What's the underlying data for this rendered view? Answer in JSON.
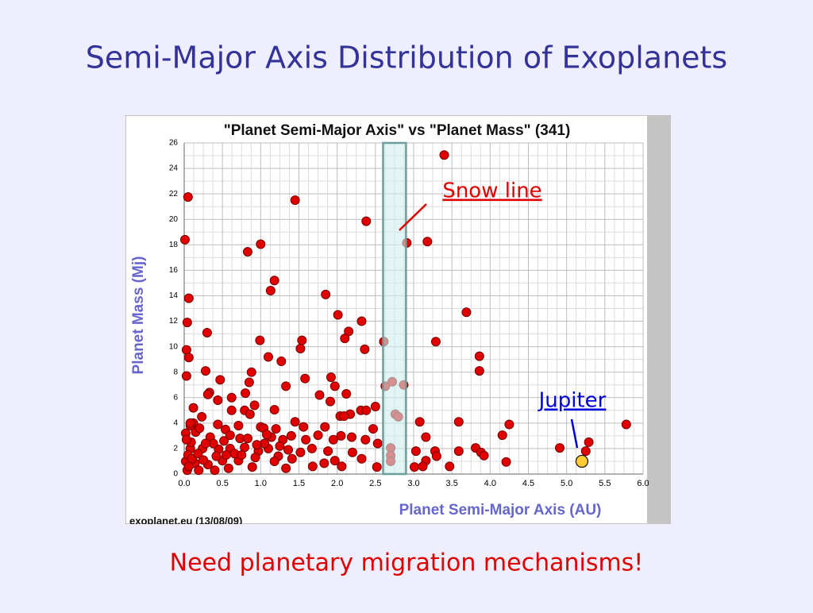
{
  "title": "Semi-Major Axis Distribution of Exoplanets",
  "caption": "Need planetary migration mechanisms!",
  "chart_data": {
    "type": "scatter",
    "title": "\"Planet Semi-Major Axis\"  vs \"Planet Mass\" (341)",
    "x_label": "Planet Semi-Major Axis (AU)",
    "y_label": "Planet Mass (Mj)",
    "source": "exoplanet.eu (13/08/09)",
    "color": "#e00000",
    "xlim": [
      0,
      6
    ],
    "ylim": [
      0,
      26
    ],
    "xticks": [
      {
        "value": 0,
        "label": "0.0"
      },
      {
        "value": 0.5,
        "label": "0.5"
      },
      {
        "value": 1,
        "label": "1.0"
      },
      {
        "value": 1.5,
        "label": "1.5"
      },
      {
        "value": 2,
        "label": "2.0"
      },
      {
        "value": 2.5,
        "label": "2.5"
      },
      {
        "value": 3,
        "label": "3.0"
      },
      {
        "value": 3.5,
        "label": "3.5"
      },
      {
        "value": 4,
        "label": "4.0"
      },
      {
        "value": 4.5,
        "label": "4.5"
      },
      {
        "value": 5,
        "label": "5.0"
      },
      {
        "value": 5.5,
        "label": "5.5"
      },
      {
        "value": 6,
        "label": "6.0"
      }
    ],
    "yticks": [
      0,
      2,
      4,
      6,
      8,
      10,
      12,
      14,
      16,
      18,
      20,
      22,
      24,
      26
    ],
    "grid": true,
    "band_x": [
      2.6,
      2.9
    ],
    "x": [
      3.4,
      0.05,
      1.45,
      2.38,
      0.01,
      1.0,
      0.83,
      2.91,
      3.18,
      1.18,
      1.13,
      0.06,
      1.85,
      3.69,
      2.01,
      2.32,
      0.04,
      2.15,
      0.3,
      2.1,
      0.99,
      1.54,
      2.61,
      3.29,
      2.36,
      1.52,
      0.03,
      1.1,
      3.86,
      0.06,
      1.27,
      3.86,
      0.88,
      0.28,
      0.03,
      1.58,
      0.47,
      1.92,
      2.72,
      2.87,
      2.63,
      0.85,
      1.33,
      1.97,
      0.8,
      0.33,
      1.77,
      0.31,
      2.12,
      0.62,
      0.44,
      0.92,
      1.91,
      2.5,
      0.12,
      0.62,
      0.79,
      2.31,
      2.38,
      2.17,
      1.18,
      2.04,
      2.09,
      2.76,
      2.8,
      0.86,
      0.23,
      1.45,
      3.08,
      3.59,
      4.25,
      5.78,
      0.12,
      0.08,
      0.71,
      1.0,
      1.04,
      2.47,
      1.2,
      1.56,
      1.84,
      0.44,
      0.54,
      4.16,
      0.02,
      0.34,
      0.6,
      0.73,
      0.83,
      1.14,
      1.29,
      1.59,
      1.75,
      1.95,
      2.05,
      2.19,
      2.37,
      3.16,
      2.53,
      5.29,
      3.81,
      4.91,
      2.7,
      3.03,
      3.28,
      3.59,
      3.88,
      3.92,
      5.25,
      2.2,
      1.88,
      1.67,
      1.52,
      1.1,
      0.97,
      0.79,
      0.6,
      0.45,
      0.24,
      0.08,
      2.7,
      3.3,
      2.32,
      3.16,
      4.21,
      2.7,
      1.97,
      1.83,
      1.41,
      1.23,
      0.71,
      0.5,
      0.31,
      0.14,
      3.01,
      3.47,
      3.12,
      2.52,
      2.06,
      1.68,
      1.33,
      0.89,
      0.58,
      0.4,
      0.19,
      0.04,
      0.02,
      0.05,
      0.09,
      0.03,
      0.1,
      0.06,
      0.15,
      0.2,
      0.08,
      0.18,
      0.25,
      0.38,
      0.52,
      0.66,
      0.93,
      1.05,
      1.18,
      1.25,
      1.36,
      1.4,
      1.08,
      0.95,
      0.75,
      0.55,
      0.28,
      0.42
    ],
    "values": [
      25.05,
      21.75,
      21.5,
      19.85,
      18.4,
      18.05,
      17.45,
      18.15,
      18.25,
      15.2,
      14.4,
      13.8,
      14.1,
      12.7,
      12.5,
      12.0,
      11.9,
      11.2,
      11.1,
      10.65,
      10.5,
      10.5,
      10.4,
      10.4,
      9.8,
      9.85,
      9.75,
      9.2,
      9.25,
      9.15,
      8.85,
      8.1,
      8.0,
      8.1,
      7.7,
      7.5,
      7.4,
      7.6,
      7.25,
      7.0,
      6.9,
      7.2,
      6.9,
      6.9,
      6.35,
      6.4,
      6.2,
      6.25,
      6.3,
      6.0,
      5.8,
      5.4,
      5.7,
      5.3,
      5.2,
      5.0,
      5.0,
      5.0,
      5.0,
      4.7,
      5.05,
      4.55,
      4.55,
      4.7,
      4.5,
      4.7,
      4.5,
      4.1,
      4.1,
      4.1,
      3.9,
      3.9,
      4.0,
      3.8,
      3.8,
      3.7,
      3.6,
      3.55,
      3.55,
      3.7,
      3.7,
      3.9,
      3.5,
      3.05,
      3.2,
      2.9,
      3.05,
      2.8,
      2.8,
      2.9,
      2.7,
      2.7,
      3.05,
      2.7,
      3.0,
      2.9,
      2.7,
      2.9,
      2.4,
      2.5,
      2.05,
      2.05,
      2.05,
      1.8,
      1.8,
      1.8,
      1.7,
      1.45,
      1.8,
      1.7,
      1.8,
      2.0,
      1.7,
      2.0,
      1.8,
      2.1,
      2.0,
      1.95,
      2.0,
      2.0,
      1.45,
      1.4,
      1.2,
      1.05,
      0.95,
      1.0,
      1.05,
      0.85,
      1.2,
      1.4,
      1.05,
      1.05,
      0.75,
      0.85,
      0.55,
      0.6,
      0.6,
      0.55,
      0.6,
      0.6,
      0.45,
      0.55,
      0.45,
      0.3,
      0.3,
      0.3,
      1.0,
      1.5,
      2.5,
      2.7,
      1.2,
      0.6,
      3.3,
      3.6,
      4.0,
      1.6,
      1.1,
      2.4,
      2.6,
      1.6,
      1.3,
      2.4,
      1.0,
      2.2,
      1.9,
      3.0,
      3.1,
      2.3,
      1.5,
      1.5,
      2.4,
      1.4
    ],
    "annotations": [
      {
        "text": "Snow line",
        "color": "#e00000"
      },
      {
        "text": "Jupiter",
        "color": "#0000dd",
        "x": 5.2,
        "y": 1.0,
        "marker_color": "#ffcc33"
      }
    ]
  }
}
